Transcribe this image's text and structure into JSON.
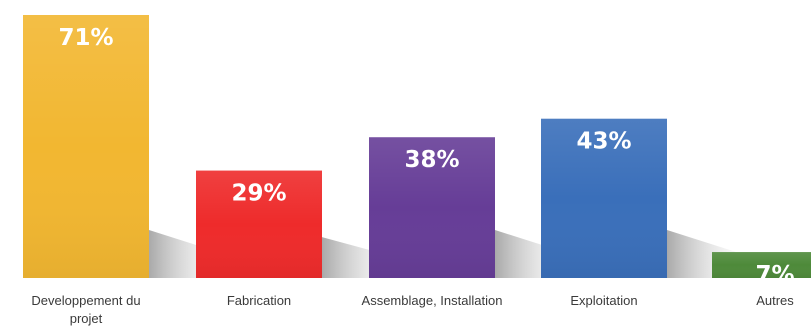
{
  "chart_data": {
    "type": "bar",
    "categories": [
      [
        "Developpement du",
        "projet"
      ],
      [
        "Fabrication"
      ],
      [
        "Assemblage, Installation"
      ],
      [
        "Exploitation"
      ],
      [
        "Autres"
      ]
    ],
    "values": [
      71,
      29,
      38,
      43,
      7
    ],
    "value_labels": [
      "71%",
      "29%",
      "38%",
      "43%",
      "7%"
    ],
    "colors": [
      "#f2b731",
      "#ee2b2b",
      "#663d97",
      "#3a6fba",
      "#4e8a3a"
    ],
    "title": "",
    "xlabel": "",
    "ylabel": "",
    "ylim": [
      0,
      71
    ],
    "grid": false,
    "legend": "none"
  }
}
